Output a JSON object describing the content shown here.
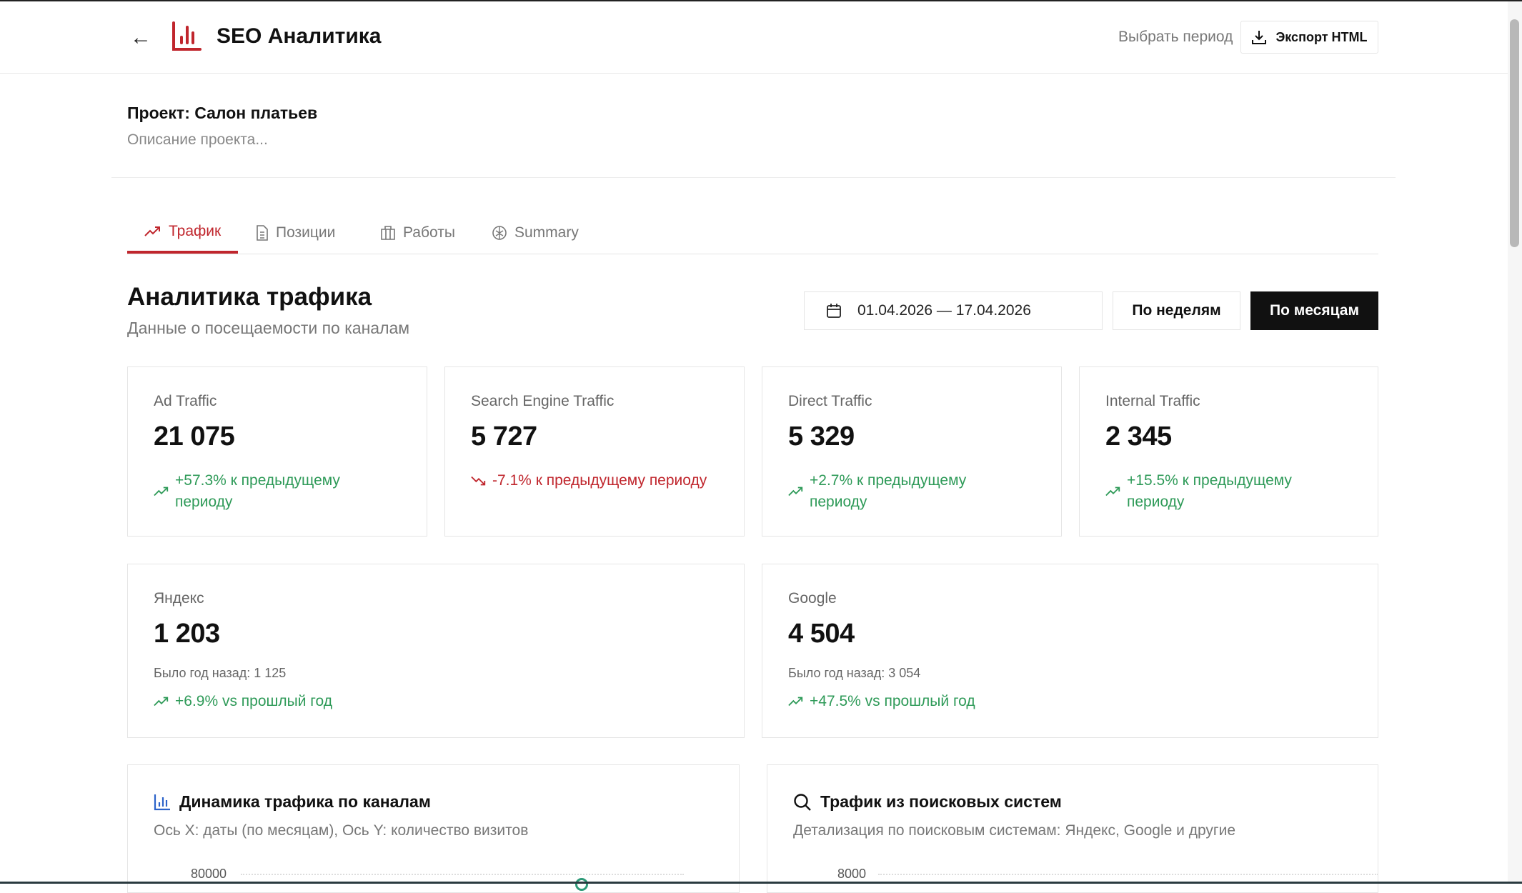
{
  "header": {
    "title": "SEO Аналитика",
    "period_label": "Выбрать период",
    "export_label": "Экспорт HTML"
  },
  "project": {
    "title": "Проект: Салон платьев",
    "description": "Описание проекта..."
  },
  "tabs": [
    {
      "label": "Трафик",
      "icon": "trending-up-icon",
      "active": true
    },
    {
      "label": "Позиции",
      "icon": "document-icon"
    },
    {
      "label": "Работы",
      "icon": "briefcase-icon"
    },
    {
      "label": "Summary",
      "icon": "brain-icon"
    }
  ],
  "section": {
    "title": "Аналитика трафика",
    "subtitle": "Данные о посещаемости по каналам",
    "date_range": "01.04.2026 — 17.04.2026",
    "weeks_label": "По неделям",
    "months_label": "По месяцам"
  },
  "metrics": [
    {
      "label": "Ad Traffic",
      "value": "21 075",
      "change": "+57.3% к предыдущему периоду",
      "trend": "up"
    },
    {
      "label": "Search Engine Traffic",
      "value": "5 727",
      "change": "-7.1% к предыдущему периоду",
      "trend": "down"
    },
    {
      "label": "Direct Traffic",
      "value": "5 329",
      "change": "+2.7% к предыдущему периоду",
      "trend": "up"
    },
    {
      "label": "Internal Traffic",
      "value": "2 345",
      "change": "+15.5% к предыдущему периоду",
      "trend": "up"
    }
  ],
  "engines": [
    {
      "label": "Яндекс",
      "value": "1 203",
      "last_year": "Было год назад: 1 125",
      "change": "+6.9% vs прошлый год"
    },
    {
      "label": "Google",
      "value": "4 504",
      "last_year": "Было год назад: 3 054",
      "change": "+47.5% vs прошлый год"
    }
  ],
  "charts": [
    {
      "title": "Динамика трафика по каналам",
      "subtitle": "Ось X: даты (по месяцам), Ось Y: количество визитов",
      "y_top_tick": "80000"
    },
    {
      "title": "Трафик из поисковых систем",
      "subtitle": "Детализация по поисковым системам: Яндекс, Google и другие",
      "y_top_tick": "8000"
    }
  ],
  "colors": {
    "accent": "#c0262d",
    "positive": "#2e9a58",
    "negative": "#c0262d",
    "primary_button": "#111111"
  }
}
